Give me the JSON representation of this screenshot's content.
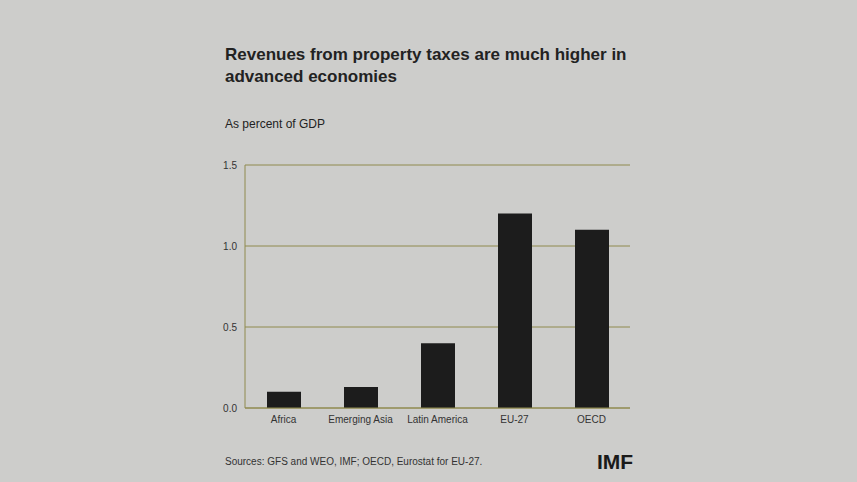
{
  "chart_data": {
    "type": "bar",
    "title": "Revenues from property taxes are much higher in advanced economies",
    "subtitle": "As percent of GDP",
    "categories": [
      "Africa",
      "Emerging Asia",
      "Latin America",
      "EU-27",
      "OECD"
    ],
    "values": [
      0.1,
      0.13,
      0.4,
      1.2,
      1.1
    ],
    "color": "#1c1c1c",
    "ylim": [
      0,
      1.5
    ],
    "yticks": [
      {
        "value": 0,
        "label": "0.0"
      },
      {
        "value": 0.5,
        "label": "0.5"
      },
      {
        "value": 1,
        "label": "1.0"
      },
      {
        "value": 1.5,
        "label": "1.5"
      }
    ],
    "grid": true,
    "annotations": [
      "Sources: GFS and WEO, IMF; OECD, Eurostat for EU-27.",
      "IMF"
    ]
  }
}
